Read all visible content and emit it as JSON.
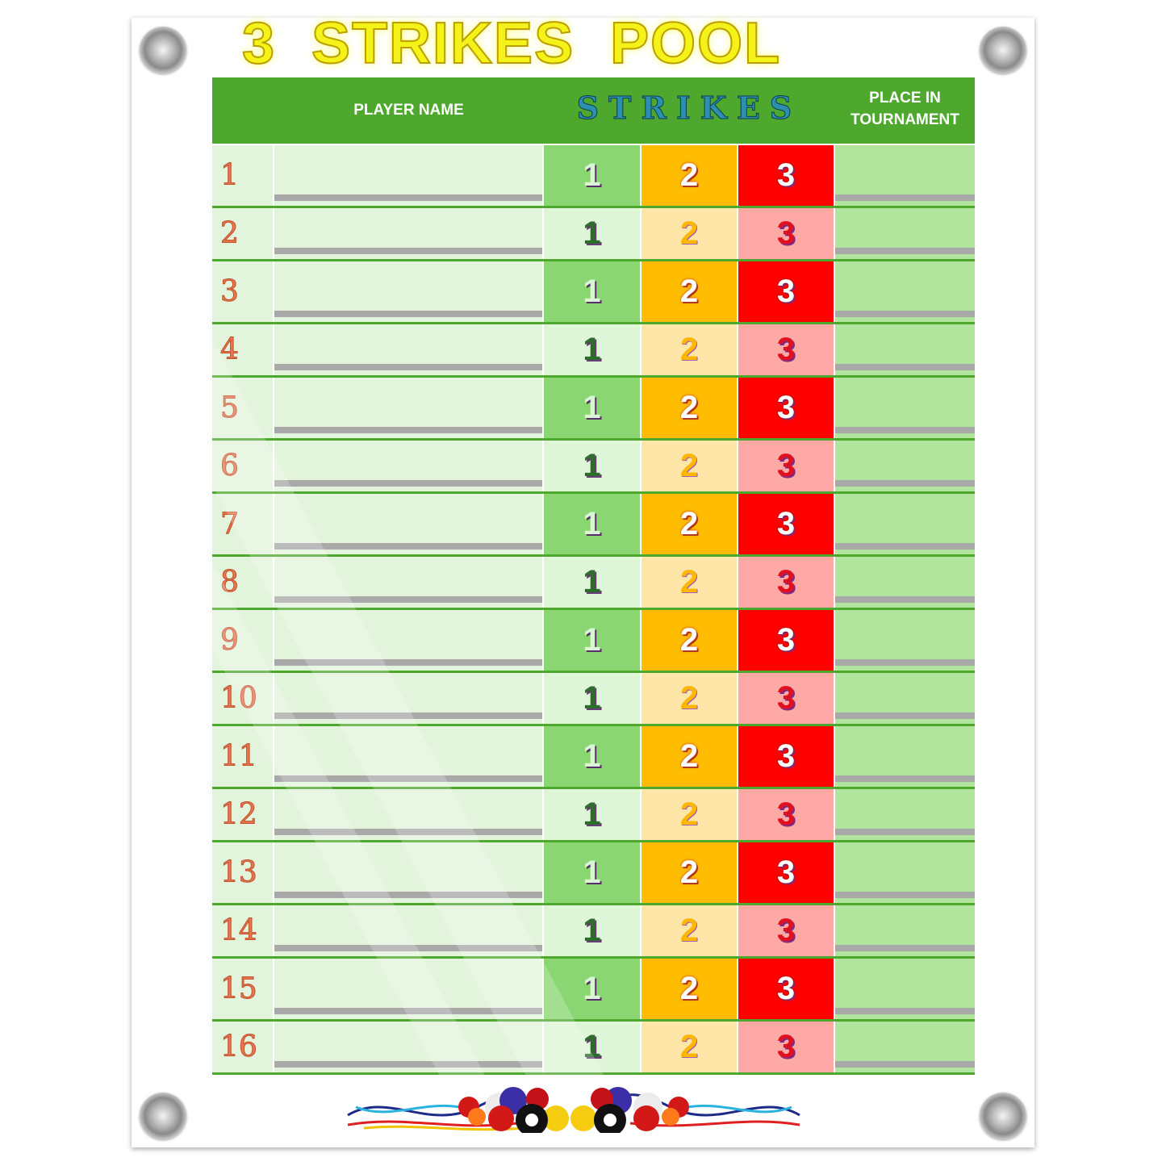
{
  "title": "3  STRIKES  POOL",
  "header": {
    "player_name": "PLAYER NAME",
    "strikes": "STRIKES",
    "place": "PLACE IN TOURNAMENT"
  },
  "strike_labels": [
    "1",
    "2",
    "3"
  ],
  "rows": [
    "1",
    "2",
    "3",
    "4",
    "5",
    "6",
    "7",
    "8",
    "9",
    "10",
    "11",
    "12",
    "13",
    "14",
    "15",
    "16"
  ],
  "colors": {
    "header_green": "#4ea82e",
    "strike1": "#8ad672",
    "strike2": "#ffbc00",
    "strike3": "#ff0000",
    "place": "#b1e59e",
    "row_numbers": "#e8774f",
    "title_yellow": "#f5f21a"
  },
  "banner_icon": "billiard-balls-banner"
}
